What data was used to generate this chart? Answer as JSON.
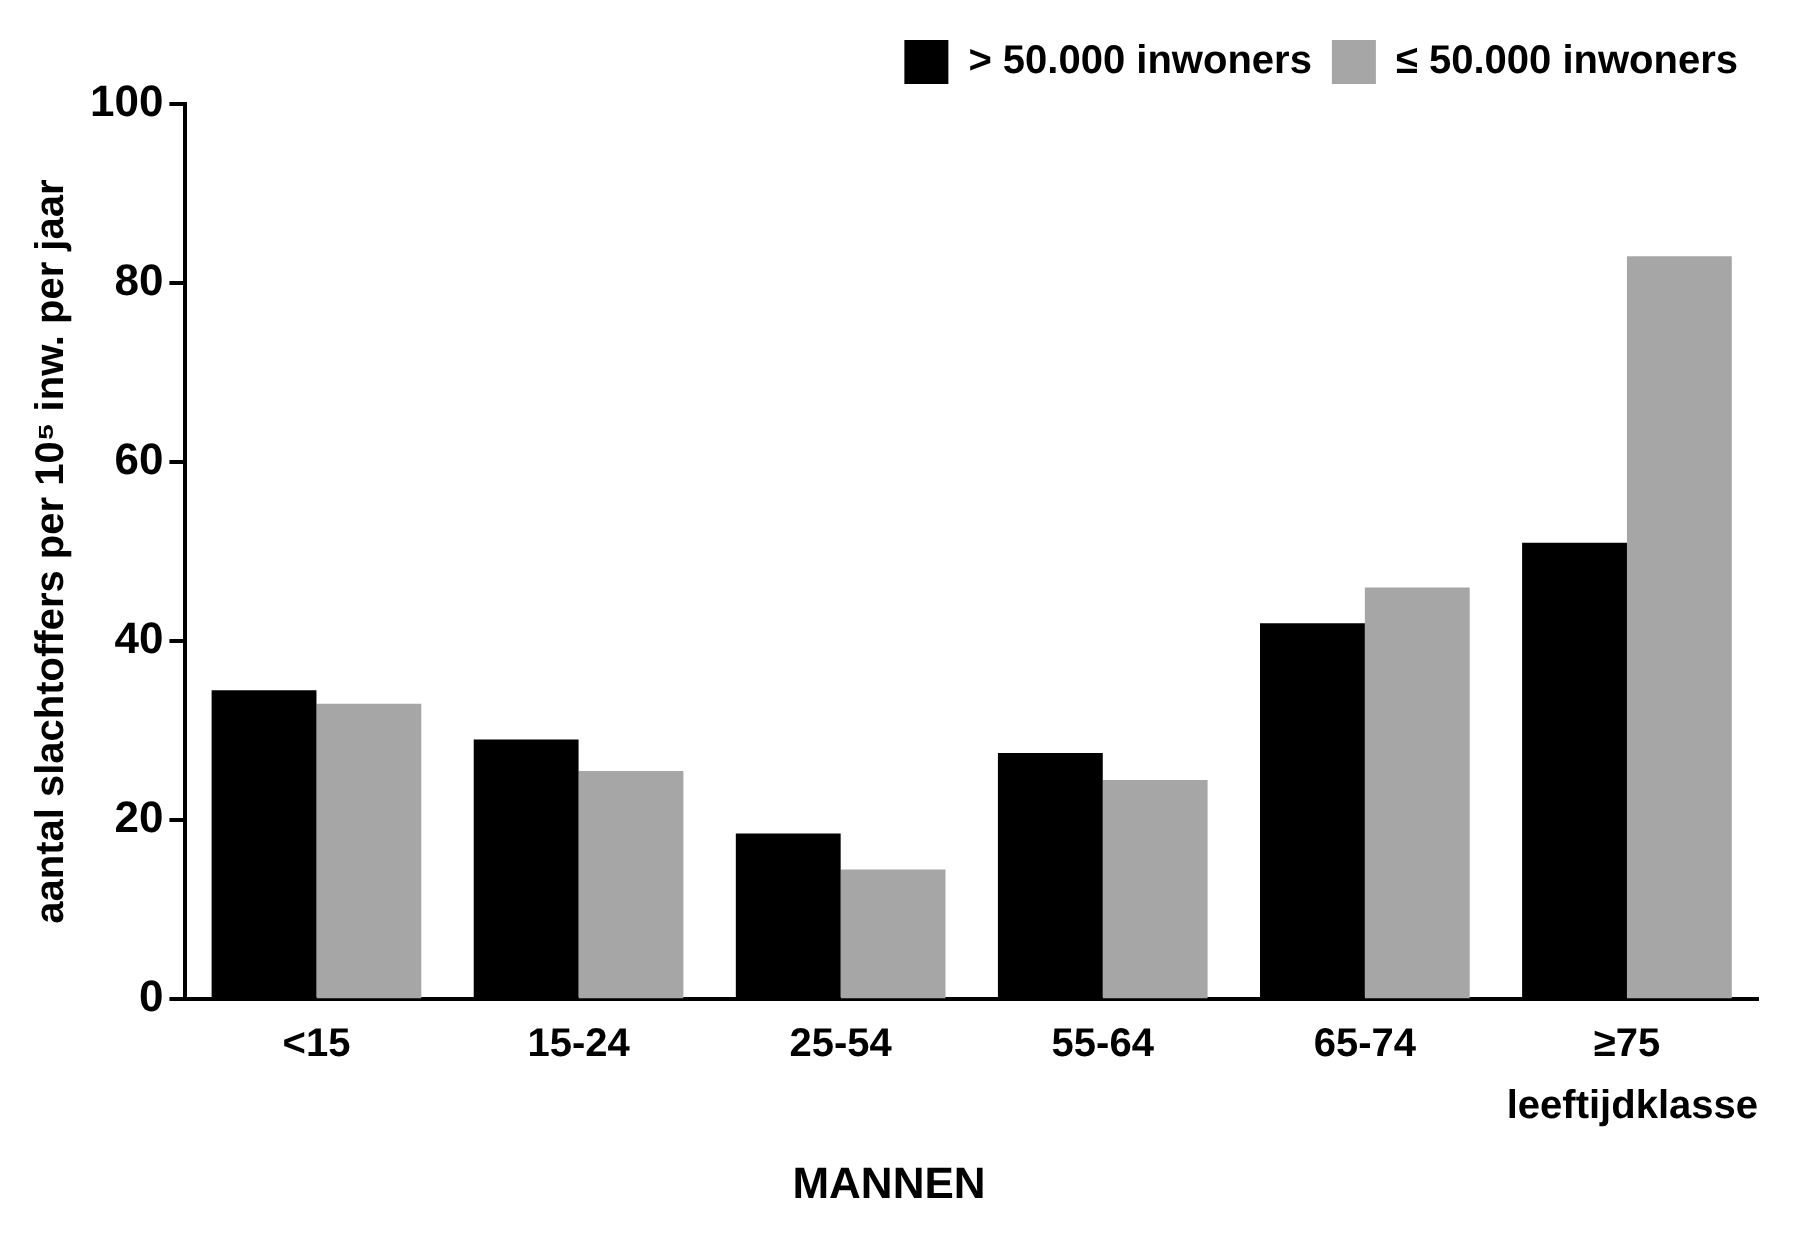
{
  "chart_data": {
    "type": "bar",
    "xlabel": "leeftijdklasse",
    "ylabel": "aantal slachtoffers per 10⁵ inw. per jaar",
    "title": "MANNEN",
    "categories": [
      "<15",
      "15-24",
      "25-54",
      "55-64",
      "65-74",
      "≥75"
    ],
    "series": [
      {
        "name": "> 50.000 inwoners",
        "color": "#000000",
        "values": [
          34.5,
          29,
          18.5,
          27.5,
          42,
          51
        ]
      },
      {
        "name": "≤ 50.000 inwoners",
        "color": "#a6a6a6",
        "values": [
          33,
          25.5,
          14.5,
          24.5,
          46,
          83
        ]
      }
    ],
    "ylim": [
      0,
      100
    ],
    "yticks": [
      0,
      20,
      40,
      60,
      80,
      100
    ],
    "grid": false,
    "legend": "top right"
  }
}
